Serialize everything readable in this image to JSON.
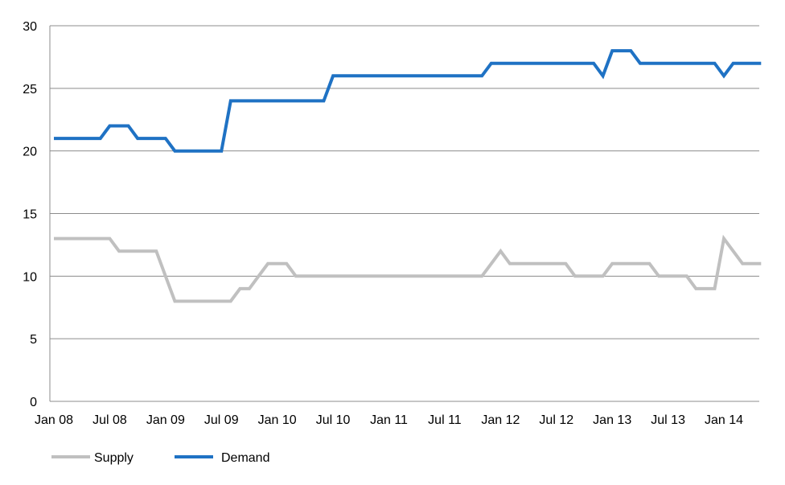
{
  "chart_data": {
    "type": "line",
    "title": "",
    "xlabel": "",
    "ylabel": "",
    "ylim": [
      0,
      30
    ],
    "y_ticks": [
      "0",
      "5",
      "10",
      "15",
      "20",
      "25",
      "30"
    ],
    "x_tick_labels": [
      "Jan 08",
      "Jul 08",
      "Jan 09",
      "Jul 09",
      "Jan 10",
      "Jul 10",
      "Jan 11",
      "Jul 11",
      "Jan 12",
      "Jul 12",
      "Jan 13",
      "Jul 13",
      "Jan 14"
    ],
    "x_tick_indices": [
      0,
      6,
      12,
      18,
      24,
      30,
      36,
      42,
      48,
      54,
      60,
      66,
      72
    ],
    "x_count": 77,
    "grid": true,
    "legend_position": "bottom-left",
    "series": [
      {
        "name": "Supply",
        "color": "#c0c0c0",
        "values": [
          13,
          13,
          13,
          13,
          13,
          13,
          13,
          12,
          12,
          12,
          12,
          12,
          10,
          8,
          8,
          8,
          8,
          8,
          8,
          8,
          9,
          9,
          10,
          11,
          11,
          11,
          10,
          10,
          10,
          10,
          10,
          10,
          10,
          10,
          10,
          10,
          10,
          10,
          10,
          10,
          10,
          10,
          10,
          10,
          10,
          10,
          10,
          11,
          12,
          11,
          11,
          11,
          11,
          11,
          11,
          11,
          10,
          10,
          10,
          10,
          11,
          11,
          11,
          11,
          11,
          10,
          10,
          10,
          10,
          9,
          9,
          9,
          13,
          12,
          11,
          11,
          11
        ]
      },
      {
        "name": "Demand",
        "color": "#1f72c4",
        "values": [
          21,
          21,
          21,
          21,
          21,
          21,
          22,
          22,
          22,
          21,
          21,
          21,
          21,
          20,
          20,
          20,
          20,
          20,
          20,
          24,
          24,
          24,
          24,
          24,
          24,
          24,
          24,
          24,
          24,
          24,
          26,
          26,
          26,
          26,
          26,
          26,
          26,
          26,
          26,
          26,
          26,
          26,
          26,
          26,
          26,
          26,
          26,
          27,
          27,
          27,
          27,
          27,
          27,
          27,
          27,
          27,
          27,
          27,
          27,
          26,
          28,
          28,
          28,
          27,
          27,
          27,
          27,
          27,
          27,
          27,
          27,
          27,
          26,
          27,
          27,
          27,
          27
        ]
      }
    ]
  }
}
